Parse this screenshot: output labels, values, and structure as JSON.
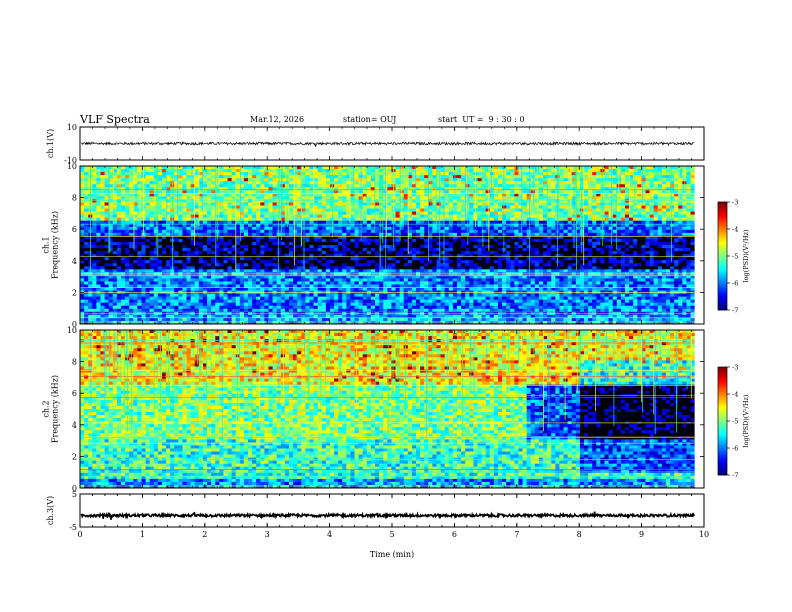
{
  "header": {
    "title": "VLF Spectra",
    "date": "Mar.12, 2026",
    "station": "station= OUJ",
    "start_ut": "start  UT =  9 : 30 : 0"
  },
  "chart_data": [
    {
      "type": "line",
      "id": "ch1-waveform",
      "ylabel": "ch.1(V)",
      "ylim": [
        -10,
        10
      ],
      "yticks": [
        "10",
        "-10"
      ],
      "baseline": 0,
      "amplitude": 0.8
    },
    {
      "type": "heatmap",
      "id": "ch1-spectrogram",
      "ylabel": "ch.1\nFrequency  (kHz)",
      "ylim": [
        0,
        10
      ],
      "yticks": [
        "0",
        "2",
        "4",
        "6",
        "8",
        "10"
      ],
      "colorbar": {
        "label": "log(PSD)(V²/Hz)",
        "range": [
          -7,
          -3
        ],
        "ticks": [
          "-3",
          "-4",
          "-5",
          "-6",
          "-7"
        ]
      },
      "bands": [
        {
          "f": [
            0,
            0.6
          ],
          "level": -5.8
        },
        {
          "f": [
            0.6,
            3.5
          ],
          "level": -6.0
        },
        {
          "f": [
            3.5,
            5.5
          ],
          "level": -6.8
        },
        {
          "f": [
            5.5,
            6.5
          ],
          "level": -6.1
        },
        {
          "f": [
            6.5,
            10
          ],
          "level": -5.0
        }
      ]
    },
    {
      "type": "heatmap",
      "id": "ch2-spectrogram",
      "ylabel": "ch.2\nFrequency  (kHz)",
      "ylim": [
        0,
        10
      ],
      "yticks": [
        "0",
        "2",
        "4",
        "6",
        "8",
        "10"
      ],
      "colorbar": {
        "label": "log(PSD)(V²/Hz)",
        "range": [
          -7,
          -3
        ],
        "ticks": [
          "-3",
          "-4",
          "-5",
          "-6",
          "-7"
        ]
      },
      "bands": [
        {
          "f": [
            0,
            0.6
          ],
          "level": -5.9
        },
        {
          "f": [
            0.6,
            3.0
          ],
          "level": -5.3
        },
        {
          "f": [
            3.0,
            6.5
          ],
          "level": -5.0
        },
        {
          "f": [
            6.5,
            10
          ],
          "level": -4.5
        }
      ],
      "change_points_min": [
        7.1,
        8.0
      ]
    },
    {
      "type": "line",
      "id": "ch3-waveform",
      "ylabel": "ch.3(V)",
      "ylim": [
        -5,
        5
      ],
      "yticks": [
        "5",
        "-5"
      ],
      "baseline": -1.5,
      "amplitude": 0.4
    }
  ],
  "xaxis": {
    "label": "Time  (min)",
    "range": [
      0,
      10
    ],
    "data_end": 9.85,
    "ticks": [
      "0",
      "1",
      "2",
      "3",
      "4",
      "5",
      "6",
      "7",
      "8",
      "9",
      "10"
    ]
  }
}
